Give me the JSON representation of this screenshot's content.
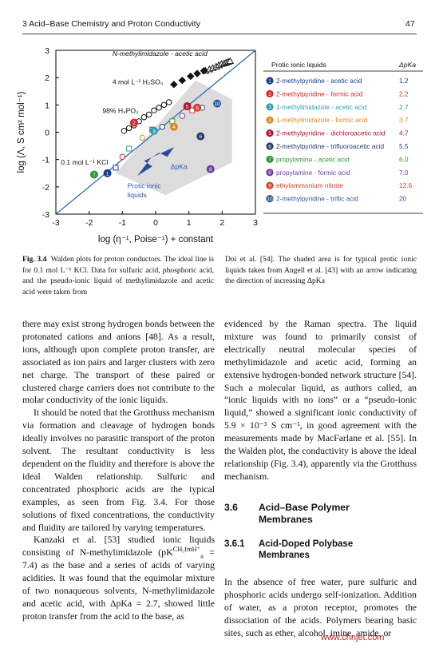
{
  "header": {
    "chapter_title": "3   Acid–Base Chemistry and Proton Conductivity",
    "page_number": "47"
  },
  "figure": {
    "caption_label": "Fig. 3.4",
    "caption_left": "Walden plots for proton conductors. The ideal line is for 0.1 mol L⁻¹ KCl. Data for sulfuric acid, phosphoric acid, and the pseudo-ionic liquid of methylimidazole and acetic acid were taken from",
    "caption_right": "Doi et al. [54]. The shaded area is for typical protic ionic liquids taken from Angell et al. [43] with an arrow indicating the direction of increasing ΔpKa"
  },
  "chart_data": {
    "type": "scatter",
    "xlabel": "log (η⁻¹, Poise⁻¹) + constant",
    "ylabel": "log (Λ, S cm² mol⁻¹)",
    "xlim": [
      -3,
      3
    ],
    "ylim": [
      -3,
      3
    ],
    "xticks": [
      "-3",
      "-2",
      "-1",
      "0",
      "1",
      "2",
      "3"
    ],
    "yticks": [
      "3",
      "2",
      "1",
      "0",
      "-1",
      "-2",
      "-3"
    ],
    "ideal_line": {
      "label": "0.1 mol L⁻¹ KCl",
      "points": [
        [
          -3,
          -3
        ],
        [
          3,
          3
        ]
      ],
      "color": "#2a6fb0"
    },
    "annotations": {
      "methylimidazole": "N-methylimidazole - acetic acid",
      "sulfuric": "4 mol L⁻¹ H₂SO₄",
      "phosphoric": "98% H₃PO₄",
      "shaded_region": "Protic ionic liquids",
      "arrow": "ΔpKa"
    },
    "series": [
      {
        "name": "N-methylimidazole - acetic acid",
        "marker": "triangle",
        "color": "#111111",
        "x": [
          1.5,
          1.62,
          1.72,
          1.82,
          1.9,
          1.98,
          2.06,
          2.12,
          2.18,
          2.24
        ],
        "y": [
          2.25,
          2.3,
          2.35,
          2.4,
          2.45,
          2.5,
          2.52,
          2.55,
          2.58,
          2.6
        ]
      },
      {
        "name": "4 mol L⁻¹ H₂SO₄",
        "marker": "diamond",
        "color": "#111111",
        "x": [
          0.55,
          0.8,
          1.05,
          1.25,
          1.45
        ],
        "y": [
          1.75,
          1.9,
          2.05,
          2.15,
          2.25
        ]
      },
      {
        "name": "98% H₃PO₄",
        "marker": "circle",
        "color": "#111111",
        "x": [
          -0.95,
          -0.8,
          -0.65,
          -0.5,
          -0.35,
          -0.2,
          -0.05,
          0.1,
          0.25,
          0.4
        ],
        "y": [
          0.05,
          0.15,
          0.25,
          0.4,
          0.55,
          0.65,
          0.8,
          0.9,
          1.0,
          1.1
        ]
      },
      {
        "name": "protic ionic liquids (open symbols)",
        "marker": "mixed",
        "color": "#555555",
        "x": [
          -1.2,
          -1.0,
          -0.8,
          -0.4,
          -0.1,
          0.2,
          0.5,
          0.8,
          1.1,
          1.4
        ],
        "y": [
          -1.3,
          -0.9,
          -0.6,
          -0.2,
          0.1,
          0.2,
          0.4,
          0.6,
          0.8,
          0.9
        ]
      }
    ],
    "legend": {
      "placement": "right",
      "header_name": "Protic ionic liquids",
      "header_value": "ΔpKa",
      "entries": [
        {
          "num": "1",
          "name": "2-methylpyridine - acetic acid",
          "value": "1.2",
          "color": "#1a3f8a"
        },
        {
          "num": "2",
          "name": "2-methylpyridine - formic acid",
          "value": "2.2",
          "color": "#d62828"
        },
        {
          "num": "3",
          "name": "1-methylimidazole - acetic acid",
          "value": "2.7",
          "color": "#2aa0b8"
        },
        {
          "num": "4",
          "name": "1-methylimidazole - formic acid",
          "value": "3.7",
          "color": "#e08a1e"
        },
        {
          "num": "5",
          "name": "2-methylpyridine - dichloroacetic acid",
          "value": "4.7",
          "color": "#b5122b"
        },
        {
          "num": "6",
          "name": "2-methylpyridine - trifluoroacetic acid",
          "value": "5.5",
          "color": "#243c6e"
        },
        {
          "num": "7",
          "name": "propylamine - acetic acid",
          "value": "6.0",
          "color": "#2f9a2f"
        },
        {
          "num": "8",
          "name": "propylamine - formic acid",
          "value": "7.0",
          "color": "#6b3fa0"
        },
        {
          "num": "9",
          "name": "ethylammonium nitrate",
          "value": "12.6",
          "color": "#d6402b"
        },
        {
          "num": "10",
          "name": "2-methylpyridine - triflic acid",
          "value": "20",
          "color": "#2c5aa0"
        }
      ]
    }
  },
  "left_column": {
    "p1": "there may exist strong hydrogen bonds between the protonated cations and anions [48]. As a result, ions, although upon complete proton transfer, are associated as ion pairs and larger clusters with zero net charge. The transport of these paired or clustered charge carriers does not contribute to the molar conductivity of the ionic liquids.",
    "p2": "It should be noted that the Grotthuss mechanism via formation and cleavage of hydrogen bonds ideally involves no parasitic transport of the proton solvent. The resultant conductivity is less dependent on the fluidity and therefore is above the ideal Walden relationship. Sulfuric and concentrated phosphoric acids are the typical examples, as seen from Fig. 3.4. For those solutions of fixed concentrations, the conductivity and fluidity are tailored by varying temperatures.",
    "p3a": "Kanzaki et al. [53] studied ionic liquids consisting of N-methylimidazole",
    "p3_formula": "(pK",
    "p3_formula_sup": "CH₃ImH⁺",
    "p3_formula_sub": "a",
    "p3_formula_end": "=",
    "p3b": "7.4) as the base and a series of acids of varying acidities. It was found that the equimolar mixture of two nonaqueous solvents, N-methylimidazole and acetic acid, with ΔpKa = 2.7, showed little proton transfer from the acid to the base, as"
  },
  "right_column": {
    "p1": "evidenced by the Raman spectra. The liquid mixture was found to primarily consist of electrically neutral molecular species of methylimidazole and acetic acid, forming an extensive hydrogen-bonded network structure [54]. Such a molecular liquid, as authors called, an “ionic liquids with no ions” or a “pseudo-ionic liquid,” showed a significant ionic conductivity of 5.9 × 10⁻³ S cm⁻¹, in good agreement with the measurements made by MacFarlane et al. [55]. In the Walden plot, the conductivity is above the ideal relationship (Fig. 3.4), apparently via the Grotthuss mechanism.",
    "section_num": "3.6",
    "section_title": "Acid–Base Polymer Membranes",
    "subsection_num": "3.6.1",
    "subsection_title": "Acid-Doped Polybase Membranes",
    "p2": "In the absence of free water, pure sulfuric and phosphoric acids undergo self-ionization. Addition of water, as a proton receptor, promotes the dissociation of the acids. Polymers bearing basic sites, such as ether, alcohol, imine, amide, or"
  },
  "watermark": "www.chnjet.com"
}
